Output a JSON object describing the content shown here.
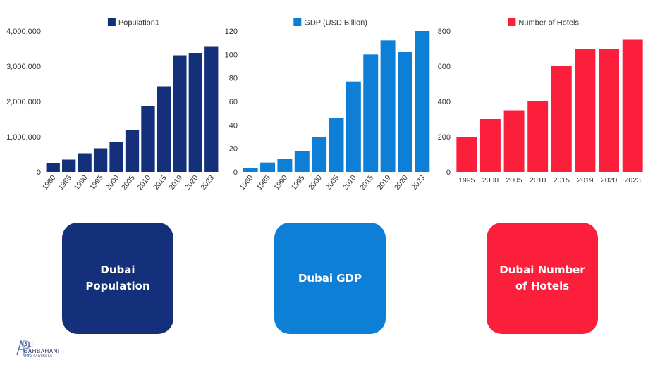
{
  "chart_data": [
    {
      "type": "bar",
      "series": [
        {
          "name": "Population1",
          "color": "#14307a",
          "values": [
            255000,
            350000,
            530000,
            670000,
            850000,
            1180000,
            1880000,
            2430000,
            3310000,
            3380000,
            3550000
          ]
        }
      ],
      "categories": [
        "1980",
        "1985",
        "1990",
        "1995",
        "2000",
        "2005",
        "2010",
        "2015",
        "2019",
        "2020",
        "2023"
      ],
      "yticks": [
        "0",
        "1,000,000",
        "2,000,000",
        "3,000,000",
        "4,000,000"
      ],
      "ylim": [
        0,
        4000000
      ],
      "legend": "top",
      "grid": false,
      "xtick_rotation": "angled"
    },
    {
      "type": "bar",
      "series": [
        {
          "name": "GDP (USD Billion)",
          "color": "#0d7fd6",
          "values": [
            3,
            8,
            11,
            18,
            30,
            46,
            77,
            100,
            112,
            102,
            120
          ]
        }
      ],
      "categories": [
        "1980",
        "1985",
        "1990",
        "1995",
        "2000",
        "2005",
        "2010",
        "2015",
        "2019",
        "2020",
        "2023"
      ],
      "yticks": [
        "0",
        "20",
        "40",
        "60",
        "80",
        "100",
        "120"
      ],
      "ylim": [
        0,
        120
      ],
      "legend": "top",
      "grid": false,
      "xtick_rotation": "angled"
    },
    {
      "type": "bar",
      "series": [
        {
          "name": "Number of Hotels",
          "color": "#fb1f3c",
          "values": [
            200,
            300,
            350,
            400,
            600,
            700,
            700,
            750
          ]
        }
      ],
      "categories": [
        "1995",
        "2000",
        "2005",
        "2010",
        "2015",
        "2019",
        "2020",
        "2023"
      ],
      "yticks": [
        "0",
        "200",
        "400",
        "600",
        "800"
      ],
      "ylim": [
        0,
        800
      ],
      "legend": "top",
      "grid": false,
      "xtick_rotation": "horizontal"
    }
  ],
  "cards": [
    {
      "label": "Dubai Population",
      "color": "#14307a"
    },
    {
      "label": "Dubai GDP",
      "color": "#0d7fd6"
    },
    {
      "label": "Dubai Number of Hotels",
      "color": "#fb1f3c"
    }
  ],
  "logo": {
    "monogram": "AB",
    "name_line1": "ALI",
    "name_line2": "BAHBAHANI",
    "tagline": "AND PARTNERS",
    "icon": "ab-monogram-logo-icon"
  }
}
